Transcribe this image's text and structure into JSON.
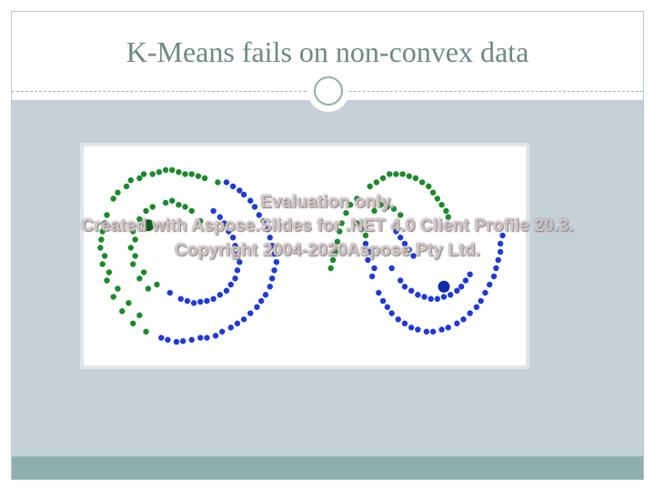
{
  "slide": {
    "title": "K-Means fails on non-convex data"
  },
  "watermark": {
    "line1": "Evaluation only.",
    "line2": "Created with Aspose.Slides for .NET 4.0 Client Profile 20.3.",
    "line3": "Copyright 2004-2020Aspose Pty Ltd."
  },
  "colors": {
    "title": "#6b8a87",
    "content_background": "#c5d1d7",
    "accent_bar": "#8eb0ad",
    "cluster_green": "#1a8a2a",
    "cluster_blue": "#1f3ad6"
  },
  "chart_data": {
    "type": "scatter",
    "title": "",
    "xlabel": "",
    "ylabel": "",
    "xlim": [
      0,
      10
    ],
    "ylim": [
      0,
      5
    ],
    "grid": false,
    "legend": "none",
    "axes_visible": false,
    "series": [
      {
        "color": "#1a8a2a",
        "centroid": [
          1.4,
          3.25
        ],
        "points": [
          [
            0.6,
            3.9
          ],
          [
            0.9,
            4.2
          ],
          [
            1.2,
            4.4
          ],
          [
            1.5,
            4.5
          ],
          [
            1.8,
            4.6
          ],
          [
            2.1,
            4.55
          ],
          [
            2.4,
            4.5
          ],
          [
            2.7,
            4.4
          ],
          [
            3.0,
            4.3
          ],
          [
            0.45,
            3.5
          ],
          [
            0.35,
            3.1
          ],
          [
            0.3,
            2.7
          ],
          [
            0.35,
            2.3
          ],
          [
            0.45,
            1.9
          ],
          [
            0.6,
            1.5
          ],
          [
            0.8,
            1.15
          ],
          [
            1.05,
            0.85
          ],
          [
            1.35,
            0.65
          ],
          [
            1.2,
            3.4
          ],
          [
            1.5,
            3.7
          ],
          [
            1.8,
            3.8
          ],
          [
            2.1,
            3.75
          ],
          [
            2.4,
            3.6
          ],
          [
            2.6,
            3.35
          ],
          [
            1.05,
            3.1
          ],
          [
            1.0,
            2.7
          ],
          [
            1.05,
            2.3
          ],
          [
            1.2,
            1.95
          ],
          [
            1.4,
            1.7
          ],
          [
            0.7,
            4.05
          ],
          [
            1.0,
            4.35
          ],
          [
            1.3,
            4.5
          ],
          [
            1.65,
            4.55
          ],
          [
            1.95,
            4.6
          ],
          [
            2.25,
            4.5
          ],
          [
            2.55,
            4.45
          ],
          [
            0.4,
            3.3
          ],
          [
            0.32,
            2.9
          ],
          [
            0.4,
            2.5
          ],
          [
            0.5,
            2.1
          ],
          [
            0.7,
            1.7
          ],
          [
            0.95,
            1.35
          ],
          [
            1.2,
            1.05
          ],
          [
            1.35,
            3.6
          ],
          [
            1.95,
            3.85
          ],
          [
            2.25,
            3.7
          ],
          [
            1.1,
            2.9
          ],
          [
            1.1,
            2.5
          ],
          [
            1.3,
            2.1
          ],
          [
            1.6,
            1.8
          ],
          [
            6.5,
            4.2
          ],
          [
            6.8,
            4.4
          ],
          [
            7.1,
            4.5
          ],
          [
            7.4,
            4.45
          ],
          [
            7.7,
            4.3
          ],
          [
            7.95,
            4.05
          ],
          [
            8.15,
            3.75
          ],
          [
            8.3,
            3.45
          ],
          [
            6.2,
            3.9
          ],
          [
            5.95,
            3.55
          ],
          [
            5.8,
            3.1
          ],
          [
            5.7,
            2.6
          ],
          [
            5.6,
            2.2
          ],
          [
            6.6,
            3.6
          ],
          [
            6.9,
            3.7
          ],
          [
            7.2,
            3.5
          ],
          [
            6.2,
            3.3
          ],
          [
            6.4,
            3.0
          ],
          [
            6.65,
            4.3
          ],
          [
            6.95,
            4.5
          ],
          [
            7.25,
            4.5
          ],
          [
            7.55,
            4.4
          ],
          [
            7.85,
            4.2
          ],
          [
            8.05,
            3.9
          ],
          [
            8.25,
            3.6
          ],
          [
            6.05,
            3.75
          ],
          [
            5.85,
            3.3
          ],
          [
            5.75,
            2.85
          ],
          [
            5.65,
            2.4
          ],
          [
            6.75,
            3.75
          ],
          [
            7.05,
            3.65
          ],
          [
            6.3,
            3.15
          ]
        ]
      },
      {
        "color": "#1f3ad6",
        "centroid": [
          8.2,
          1.75
        ],
        "points": [
          [
            3.35,
            4.2
          ],
          [
            3.6,
            4.0
          ],
          [
            3.85,
            3.7
          ],
          [
            4.05,
            3.35
          ],
          [
            4.2,
            2.95
          ],
          [
            4.3,
            2.55
          ],
          [
            4.3,
            2.15
          ],
          [
            4.2,
            1.75
          ],
          [
            4.0,
            1.4
          ],
          [
            3.75,
            1.1
          ],
          [
            3.45,
            0.85
          ],
          [
            3.1,
            0.65
          ],
          [
            2.75,
            0.5
          ],
          [
            2.4,
            0.45
          ],
          [
            2.05,
            0.4
          ],
          [
            1.7,
            0.5
          ],
          [
            2.9,
            3.6
          ],
          [
            3.15,
            3.3
          ],
          [
            3.35,
            2.95
          ],
          [
            3.45,
            2.55
          ],
          [
            3.45,
            2.15
          ],
          [
            3.3,
            1.8
          ],
          [
            3.05,
            1.55
          ],
          [
            2.75,
            1.4
          ],
          [
            2.45,
            1.35
          ],
          [
            2.15,
            1.45
          ],
          [
            1.9,
            1.6
          ],
          [
            3.2,
            4.3
          ],
          [
            3.5,
            4.1
          ],
          [
            3.75,
            3.85
          ],
          [
            3.95,
            3.5
          ],
          [
            4.15,
            3.15
          ],
          [
            4.25,
            2.75
          ],
          [
            4.35,
            2.35
          ],
          [
            4.25,
            1.95
          ],
          [
            4.1,
            1.55
          ],
          [
            3.9,
            1.25
          ],
          [
            3.6,
            0.95
          ],
          [
            3.3,
            0.75
          ],
          [
            2.95,
            0.55
          ],
          [
            2.6,
            0.5
          ],
          [
            2.2,
            0.42
          ],
          [
            1.85,
            0.45
          ],
          [
            3.05,
            3.45
          ],
          [
            3.25,
            3.1
          ],
          [
            3.4,
            2.75
          ],
          [
            3.5,
            2.35
          ],
          [
            3.4,
            1.95
          ],
          [
            3.2,
            1.65
          ],
          [
            2.9,
            1.45
          ],
          [
            2.6,
            1.38
          ],
          [
            2.3,
            1.4
          ],
          [
            6.4,
            2.8
          ],
          [
            6.45,
            2.4
          ],
          [
            6.55,
            2.0
          ],
          [
            6.7,
            1.6
          ],
          [
            6.9,
            1.25
          ],
          [
            7.15,
            0.95
          ],
          [
            7.45,
            0.75
          ],
          [
            7.8,
            0.65
          ],
          [
            8.15,
            0.7
          ],
          [
            8.5,
            0.85
          ],
          [
            8.8,
            1.1
          ],
          [
            9.05,
            1.4
          ],
          [
            9.25,
            1.8
          ],
          [
            9.4,
            2.2
          ],
          [
            9.5,
            2.6
          ],
          [
            9.55,
            3.0
          ],
          [
            7.0,
            2.2
          ],
          [
            7.2,
            1.9
          ],
          [
            7.45,
            1.65
          ],
          [
            7.75,
            1.5
          ],
          [
            8.05,
            1.45
          ],
          [
            8.35,
            1.55
          ],
          [
            8.6,
            1.75
          ],
          [
            8.8,
            2.05
          ],
          [
            7.1,
            3.1
          ],
          [
            7.3,
            2.8
          ],
          [
            7.5,
            2.5
          ],
          [
            6.5,
            2.6
          ],
          [
            6.6,
            2.2
          ],
          [
            6.8,
            1.4
          ],
          [
            7.0,
            1.1
          ],
          [
            7.3,
            0.85
          ],
          [
            7.6,
            0.7
          ],
          [
            7.95,
            0.65
          ],
          [
            8.3,
            0.75
          ],
          [
            8.65,
            0.95
          ],
          [
            8.95,
            1.25
          ],
          [
            9.15,
            1.6
          ],
          [
            9.35,
            2.0
          ],
          [
            9.45,
            2.4
          ],
          [
            9.5,
            2.8
          ],
          [
            7.3,
            1.75
          ],
          [
            7.6,
            1.55
          ],
          [
            7.9,
            1.45
          ],
          [
            8.2,
            1.5
          ],
          [
            8.5,
            1.65
          ],
          [
            8.7,
            1.9
          ],
          [
            7.2,
            2.95
          ],
          [
            7.4,
            2.65
          ]
        ]
      }
    ]
  }
}
